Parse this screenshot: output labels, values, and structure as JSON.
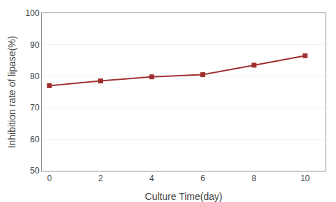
{
  "chart_data": {
    "type": "line",
    "x": [
      0,
      2,
      4,
      6,
      8,
      10
    ],
    "values": [
      77.0,
      78.5,
      79.8,
      80.5,
      83.5,
      86.5
    ],
    "color": "#A03030",
    "marker": "square",
    "xlabel": "Culture Time(day)",
    "ylabel": "Inhibition rate of lipase(%)",
    "xlim": [
      -0.3,
      10.8
    ],
    "ylim": [
      50,
      100
    ],
    "xticks": [
      0,
      2,
      4,
      6,
      8,
      10
    ],
    "yticks": [
      50,
      60,
      70,
      80,
      90,
      100
    ],
    "grid": "y"
  }
}
